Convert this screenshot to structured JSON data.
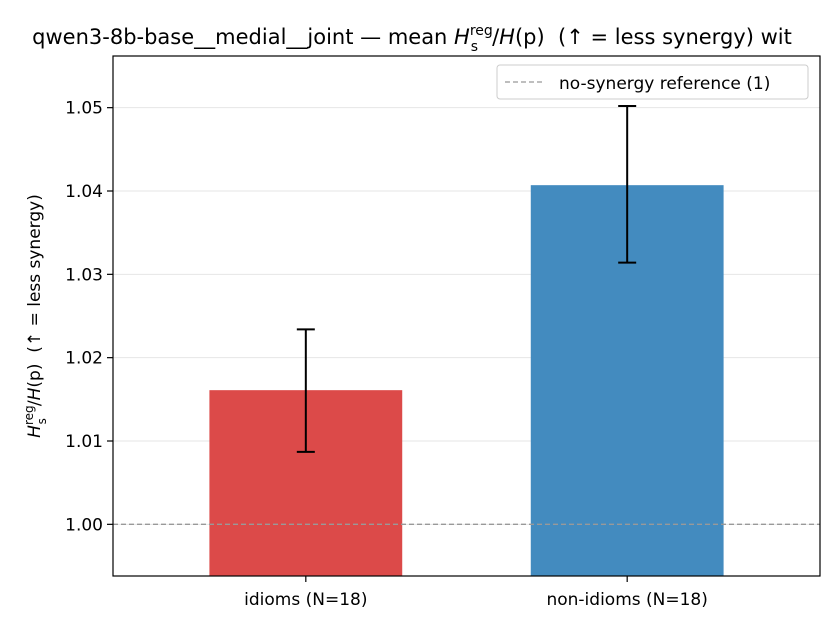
{
  "chart_data": {
    "type": "bar",
    "title": "qwen3-8b-base__medial__joint — mean H_s^reg/H(p)  (↑ = less synergy) wit",
    "title_parts": {
      "prefix": "qwen3-8b-base__medial__joint — mean ",
      "H": "H",
      "sub": "s",
      "sup": "reg",
      "slash": "/",
      "Hp": "H",
      "p": "(p)",
      "suffix": "  (↑ = less synergy) wit"
    },
    "ylabel_parts": {
      "H": "H",
      "sub": "s",
      "sup": "reg",
      "slash": "/",
      "Hp": "H",
      "p": "(p)",
      "suffix": "  (↑ = less synergy)"
    },
    "categories": [
      "idioms (N=18)",
      "non-idioms (N=18)"
    ],
    "values": [
      1.0161,
      1.0407
    ],
    "error_low": [
      1.0087,
      1.0314
    ],
    "error_high": [
      1.0234,
      1.0502
    ],
    "colors": [
      "#dc4a49",
      "#438bbf"
    ],
    "ylim": [
      0.9938,
      1.0562
    ],
    "yticks": [
      1.0,
      1.01,
      1.02,
      1.03,
      1.04,
      1.05
    ],
    "ytick_labels": [
      "1.00",
      "1.01",
      "1.02",
      "1.03",
      "1.04",
      "1.05"
    ],
    "reference_line": {
      "value": 1.0,
      "label": "no-synergy reference (1)",
      "color": "#999999"
    },
    "grid": "y",
    "legend_position": "top-right"
  }
}
